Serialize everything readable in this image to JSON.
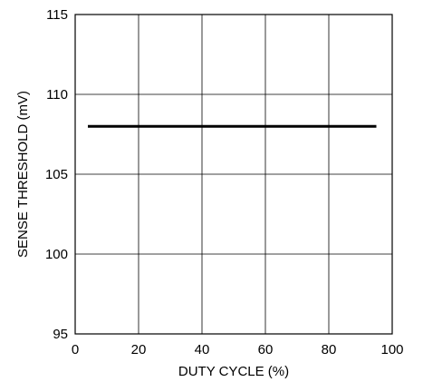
{
  "chart_data": {
    "type": "line",
    "title": "",
    "xlabel": "DUTY CYCLE (%)",
    "ylabel": "SENSE THRESHOLD (mV)",
    "xlim": [
      0,
      100
    ],
    "ylim": [
      95,
      115
    ],
    "xticks": [
      0,
      20,
      40,
      60,
      80,
      100
    ],
    "yticks": [
      95,
      100,
      105,
      110,
      115
    ],
    "grid": true,
    "legend": "none",
    "series": [
      {
        "x": [
          4,
          95
        ],
        "y": [
          108,
          108
        ],
        "color": "#000000"
      }
    ]
  }
}
